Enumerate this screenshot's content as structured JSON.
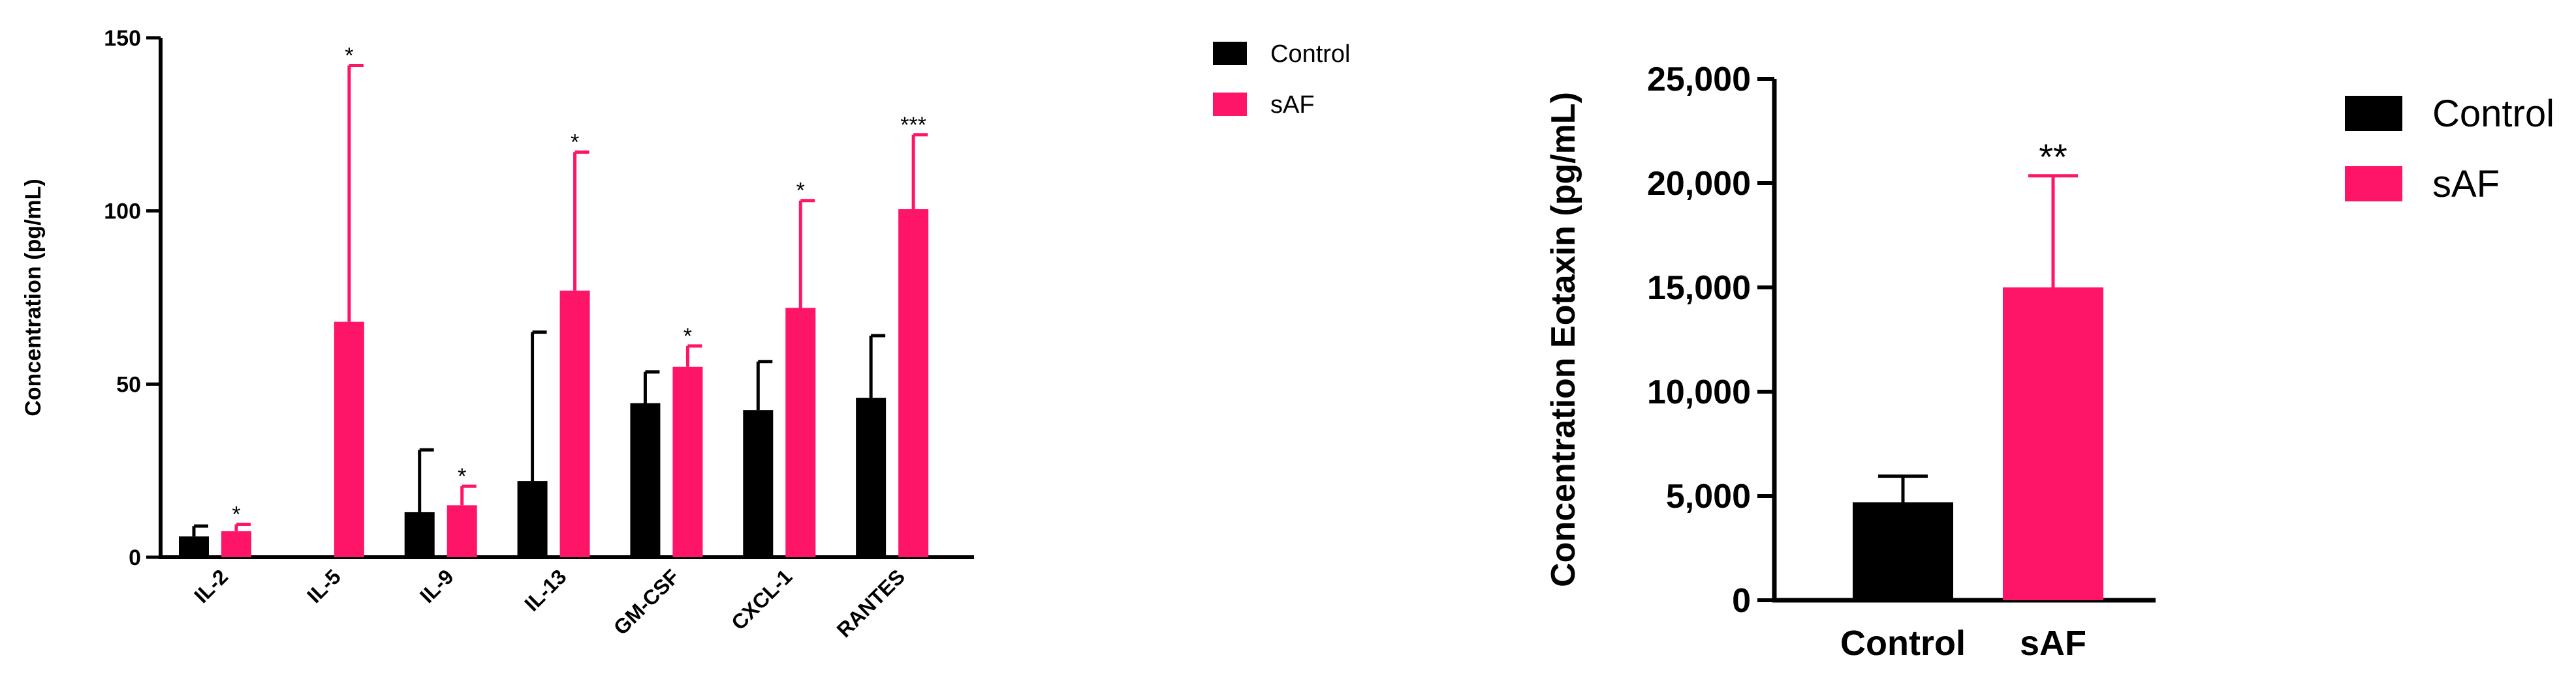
{
  "colors": {
    "control": "#000000",
    "saf": "#ff1567",
    "axis": "#000000"
  },
  "chart_data": [
    {
      "type": "bar",
      "title": "",
      "xlabel": "",
      "ylabel": "Concentration (pg/mL)",
      "ylim": [
        0,
        150
      ],
      "yticks": [
        "0",
        "50",
        "100",
        "150"
      ],
      "categories": [
        "IL-2",
        "IL-5",
        "IL-9",
        "IL-13",
        "GM-CSF",
        "CXCL-1",
        "RANTES"
      ],
      "legend": {
        "position": "top-right",
        "entries": [
          "Control",
          "sAF"
        ]
      },
      "series": [
        {
          "name": "Control",
          "values": [
            6,
            0,
            13,
            22,
            44.5,
            42.5,
            46
          ],
          "error_upper": [
            9,
            0,
            31,
            65,
            53.5,
            56.5,
            64
          ]
        },
        {
          "name": "sAF",
          "values": [
            7.5,
            68,
            15,
            77,
            55,
            72,
            100.5
          ],
          "error_upper": [
            9.5,
            142,
            20.5,
            117,
            61,
            103,
            122
          ]
        }
      ],
      "significance": [
        {
          "category": "IL-2",
          "series": "sAF",
          "label": "*"
        },
        {
          "category": "IL-5",
          "series": "sAF",
          "label": "*"
        },
        {
          "category": "IL-9",
          "series": "sAF",
          "label": "*"
        },
        {
          "category": "IL-13",
          "series": "sAF",
          "label": "*"
        },
        {
          "category": "GM-CSF",
          "series": "sAF",
          "label": "*"
        },
        {
          "category": "CXCL-1",
          "series": "sAF",
          "label": "*"
        },
        {
          "category": "RANTES",
          "series": "sAF",
          "label": "***"
        }
      ],
      "grid": false
    },
    {
      "type": "bar",
      "title": "",
      "xlabel": "",
      "ylabel": "Concentration Eotaxin (pg/mL)",
      "ylim": [
        0,
        25000
      ],
      "yticks": [
        "0",
        "5,000",
        "10,000",
        "15,000",
        "20,000",
        "25,000"
      ],
      "categories": [
        "Control",
        "sAF"
      ],
      "legend": {
        "position": "right",
        "entries": [
          "Control",
          "sAF"
        ]
      },
      "values": [
        4700,
        15000
      ],
      "error_upper": [
        5950,
        20350
      ],
      "significance": [
        {
          "category": "sAF",
          "label": "**"
        }
      ],
      "grid": false
    }
  ]
}
